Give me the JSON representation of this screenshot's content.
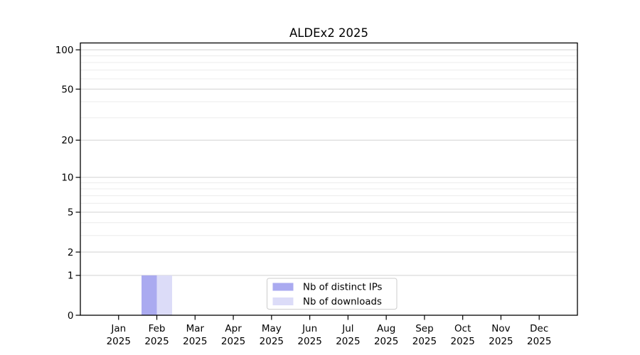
{
  "chart_data": {
    "type": "bar",
    "title": "ALDEx2 2025",
    "x_tick_year": "2025",
    "categories": [
      "Jan",
      "Feb",
      "Mar",
      "Apr",
      "May",
      "Jun",
      "Jul",
      "Aug",
      "Sep",
      "Oct",
      "Nov",
      "Dec"
    ],
    "series": [
      {
        "name": "Nb of distinct IPs",
        "color": "#aaaaf0",
        "values": [
          0,
          1,
          0,
          0,
          0,
          0,
          0,
          0,
          0,
          0,
          0,
          0
        ]
      },
      {
        "name": "Nb of downloads",
        "color": "#dcdcf8",
        "values": [
          0,
          1,
          0,
          0,
          0,
          0,
          0,
          0,
          0,
          0,
          0,
          0
        ]
      }
    ],
    "xlabel": "",
    "ylabel": "",
    "scale": "log1p",
    "ylim": [
      0,
      114
    ],
    "y_major_ticks": [
      0,
      1,
      2,
      5,
      10,
      20,
      50,
      100
    ],
    "y_minor_gridlines": [
      3,
      4,
      6,
      7,
      8,
      9,
      30,
      40,
      60,
      70,
      80,
      90
    ],
    "grid": "horizontal-only",
    "legend_position": "bottom-center-inside",
    "colors": {
      "background": "#ffffff",
      "axis": "#000000",
      "major_grid": "#d2d2d2",
      "minor_grid": "#ececec",
      "legend_border": "#cccccc",
      "legend_background": "#ffffff"
    }
  }
}
